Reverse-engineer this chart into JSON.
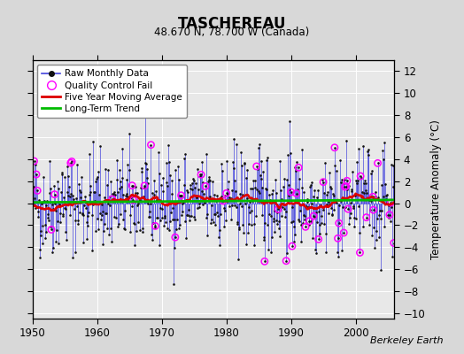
{
  "title": "TASCHEREAU",
  "subtitle": "48.670 N, 78.700 W (Canada)",
  "ylabel": "Temperature Anomaly (°C)",
  "credit": "Berkeley Earth",
  "xlim": [
    1950,
    2006
  ],
  "ylim": [
    -10.5,
    13
  ],
  "yticks": [
    -10,
    -8,
    -6,
    -4,
    -2,
    0,
    2,
    4,
    6,
    8,
    10,
    12
  ],
  "xticks": [
    1950,
    1960,
    1970,
    1980,
    1990,
    2000
  ],
  "bg_color": "#d8d8d8",
  "plot_bg_color": "#e8e8e8",
  "grid_color": "#ffffff",
  "line_color_raw": "#4444dd",
  "dot_color_raw": "#111111",
  "qc_color": "#ff00ff",
  "moving_avg_color": "#dd0000",
  "trend_color": "#00bb00",
  "seed_main": 42,
  "seed_qc": 99
}
